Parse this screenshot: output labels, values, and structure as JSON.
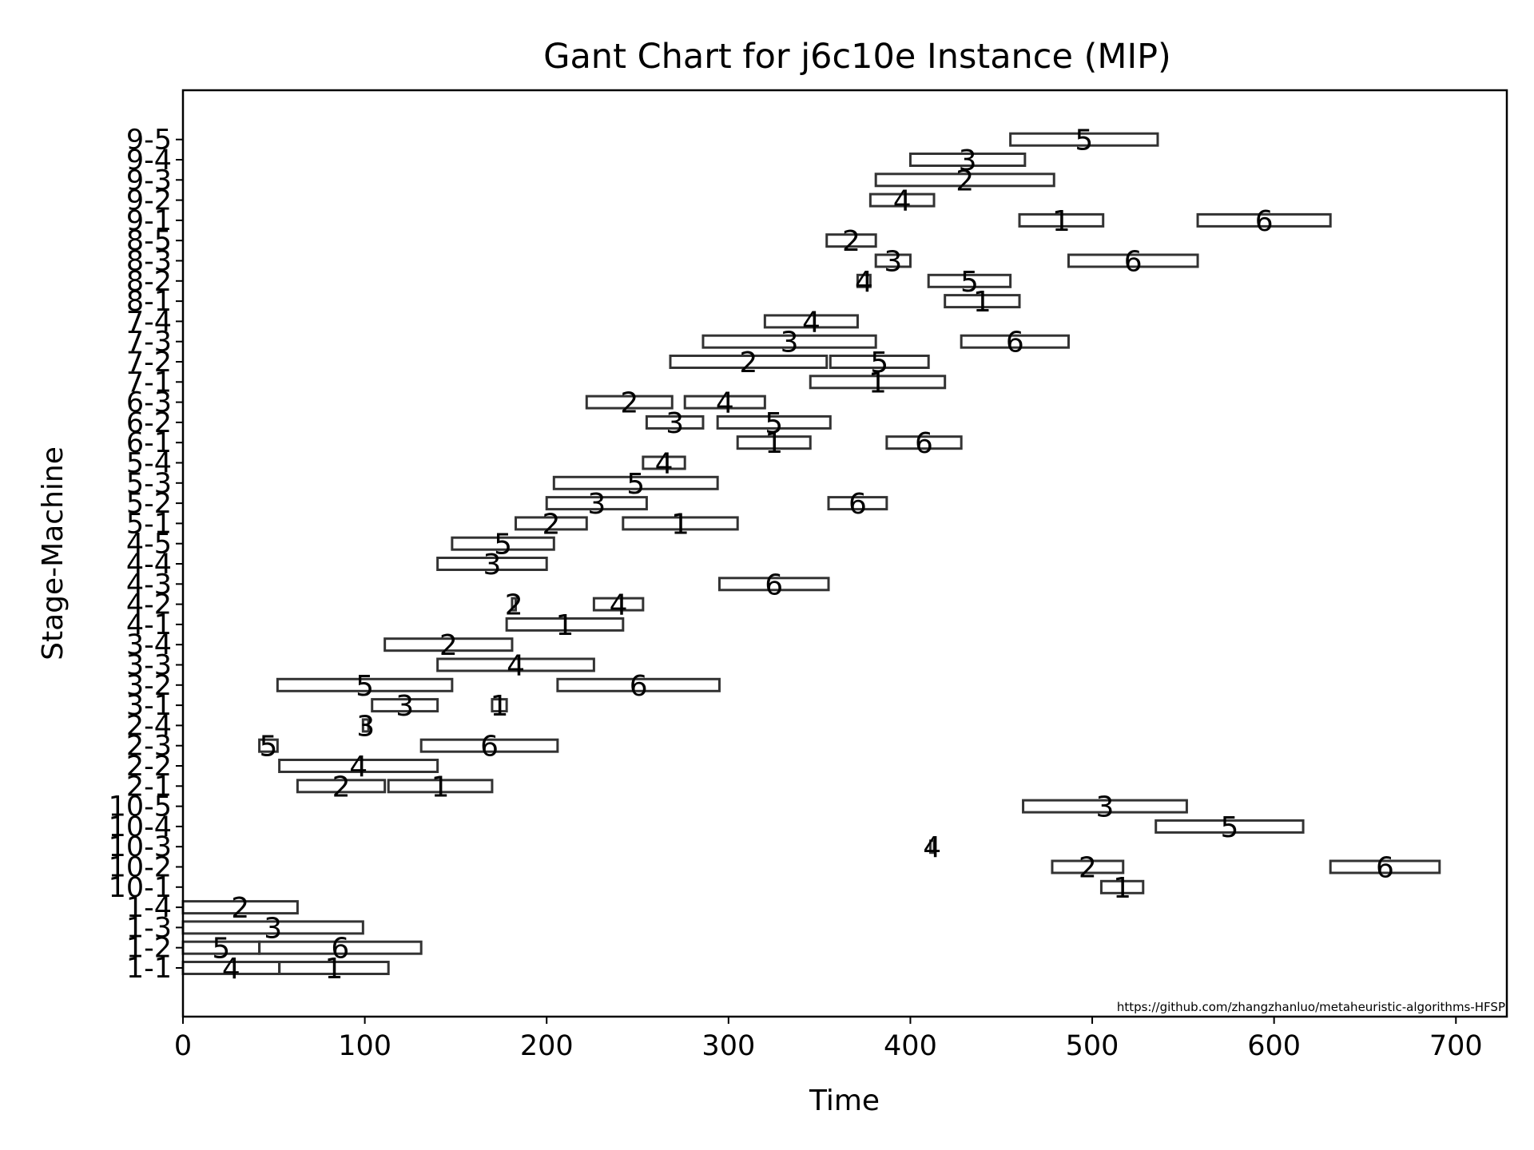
{
  "chart_data": {
    "type": "gantt",
    "title": "Gant Chart for j6c10e Instance (MIP)",
    "xlabel": "Time",
    "ylabel": "Stage-Machine",
    "xlim": [
      0,
      728
    ],
    "x_ticks": [
      0,
      100,
      200,
      300,
      400,
      500,
      600,
      700
    ],
    "y_categories": [
      "1-1",
      "1-2",
      "1-3",
      "1-4",
      "10-1",
      "10-2",
      "10-3",
      "10-4",
      "10-5",
      "2-1",
      "2-2",
      "2-3",
      "2-4",
      "3-1",
      "3-2",
      "3-3",
      "3-4",
      "4-1",
      "4-2",
      "4-3",
      "4-4",
      "4-5",
      "5-1",
      "5-2",
      "5-3",
      "5-4",
      "6-1",
      "6-2",
      "6-3",
      "7-1",
      "7-2",
      "7-3",
      "7-4",
      "8-1",
      "8-2",
      "8-3",
      "8-5",
      "9-1",
      "9-2",
      "9-3",
      "9-4",
      "9-5"
    ],
    "grid": false,
    "annotation": "https://github.com/zhangzhanluo/metaheuristic-algorithms-HFSP",
    "tasks": [
      {
        "machine": "1-1",
        "job": "4",
        "start": 0,
        "end": 53
      },
      {
        "machine": "1-1",
        "job": "1",
        "start": 53,
        "end": 113
      },
      {
        "machine": "1-2",
        "job": "5",
        "start": 0,
        "end": 42
      },
      {
        "machine": "1-2",
        "job": "6",
        "start": 42,
        "end": 131
      },
      {
        "machine": "1-3",
        "job": "3",
        "start": 0,
        "end": 99
      },
      {
        "machine": "1-4",
        "job": "2",
        "start": 0,
        "end": 63
      },
      {
        "machine": "10-1",
        "job": "1",
        "start": 505,
        "end": 528
      },
      {
        "machine": "10-2",
        "job": "2",
        "start": 478,
        "end": 517
      },
      {
        "machine": "10-2",
        "job": "6",
        "start": 631,
        "end": 691
      },
      {
        "machine": "10-3",
        "job": "4",
        "start": 411,
        "end": 413
      },
      {
        "machine": "10-4",
        "job": "5",
        "start": 535,
        "end": 616
      },
      {
        "machine": "10-5",
        "job": "3",
        "start": 462,
        "end": 552
      },
      {
        "machine": "2-1",
        "job": "2",
        "start": 63,
        "end": 111
      },
      {
        "machine": "2-1",
        "job": "1",
        "start": 113,
        "end": 170
      },
      {
        "machine": "2-2",
        "job": "4",
        "start": 53,
        "end": 140
      },
      {
        "machine": "2-3",
        "job": "5",
        "start": 42,
        "end": 52
      },
      {
        "machine": "2-3",
        "job": "6",
        "start": 131,
        "end": 206
      },
      {
        "machine": "2-4",
        "job": "3",
        "start": 99,
        "end": 102
      },
      {
        "machine": "3-1",
        "job": "3",
        "start": 104,
        "end": 140
      },
      {
        "machine": "3-1",
        "job": "1",
        "start": 170,
        "end": 178
      },
      {
        "machine": "3-2",
        "job": "5",
        "start": 52,
        "end": 148
      },
      {
        "machine": "3-2",
        "job": "6",
        "start": 206,
        "end": 295
      },
      {
        "machine": "3-3",
        "job": "4",
        "start": 140,
        "end": 226
      },
      {
        "machine": "3-4",
        "job": "2",
        "start": 111,
        "end": 181
      },
      {
        "machine": "4-1",
        "job": "1",
        "start": 178,
        "end": 242
      },
      {
        "machine": "4-2",
        "job": "2",
        "start": 181,
        "end": 183
      },
      {
        "machine": "4-2",
        "job": "4",
        "start": 226,
        "end": 253
      },
      {
        "machine": "4-3",
        "job": "6",
        "start": 295,
        "end": 355
      },
      {
        "machine": "4-4",
        "job": "3",
        "start": 140,
        "end": 200
      },
      {
        "machine": "4-5",
        "job": "5",
        "start": 148,
        "end": 204
      },
      {
        "machine": "5-1",
        "job": "2",
        "start": 183,
        "end": 222
      },
      {
        "machine": "5-1",
        "job": "1",
        "start": 242,
        "end": 305
      },
      {
        "machine": "5-2",
        "job": "3",
        "start": 200,
        "end": 255
      },
      {
        "machine": "5-2",
        "job": "6",
        "start": 355,
        "end": 387
      },
      {
        "machine": "5-3",
        "job": "5",
        "start": 204,
        "end": 294
      },
      {
        "machine": "5-4",
        "job": "4",
        "start": 253,
        "end": 276
      },
      {
        "machine": "6-1",
        "job": "1",
        "start": 305,
        "end": 345
      },
      {
        "machine": "6-1",
        "job": "6",
        "start": 387,
        "end": 428
      },
      {
        "machine": "6-2",
        "job": "3",
        "start": 255,
        "end": 286
      },
      {
        "machine": "6-2",
        "job": "5",
        "start": 294,
        "end": 356
      },
      {
        "machine": "6-3",
        "job": "2",
        "start": 222,
        "end": 269
      },
      {
        "machine": "6-3",
        "job": "4",
        "start": 276,
        "end": 320
      },
      {
        "machine": "7-1",
        "job": "1",
        "start": 345,
        "end": 419
      },
      {
        "machine": "7-2",
        "job": "2",
        "start": 268,
        "end": 354
      },
      {
        "machine": "7-2",
        "job": "5",
        "start": 356,
        "end": 410
      },
      {
        "machine": "7-3",
        "job": "3",
        "start": 286,
        "end": 381
      },
      {
        "machine": "7-3",
        "job": "6",
        "start": 428,
        "end": 487
      },
      {
        "machine": "7-4",
        "job": "4",
        "start": 320,
        "end": 371
      },
      {
        "machine": "8-1",
        "job": "1",
        "start": 419,
        "end": 460
      },
      {
        "machine": "8-2",
        "job": "4",
        "start": 371,
        "end": 378
      },
      {
        "machine": "8-2",
        "job": "5",
        "start": 410,
        "end": 455
      },
      {
        "machine": "8-3",
        "job": "3",
        "start": 381,
        "end": 400
      },
      {
        "machine": "8-3",
        "job": "6",
        "start": 487,
        "end": 558
      },
      {
        "machine": "8-5",
        "job": "2",
        "start": 354,
        "end": 381
      },
      {
        "machine": "9-1",
        "job": "1",
        "start": 460,
        "end": 506
      },
      {
        "machine": "9-1",
        "job": "6",
        "start": 558,
        "end": 631
      },
      {
        "machine": "9-2",
        "job": "4",
        "start": 378,
        "end": 413
      },
      {
        "machine": "9-3",
        "job": "2",
        "start": 381,
        "end": 479
      },
      {
        "machine": "9-4",
        "job": "3",
        "start": 400,
        "end": 463
      },
      {
        "machine": "9-5",
        "job": "5",
        "start": 455,
        "end": 536
      }
    ]
  }
}
